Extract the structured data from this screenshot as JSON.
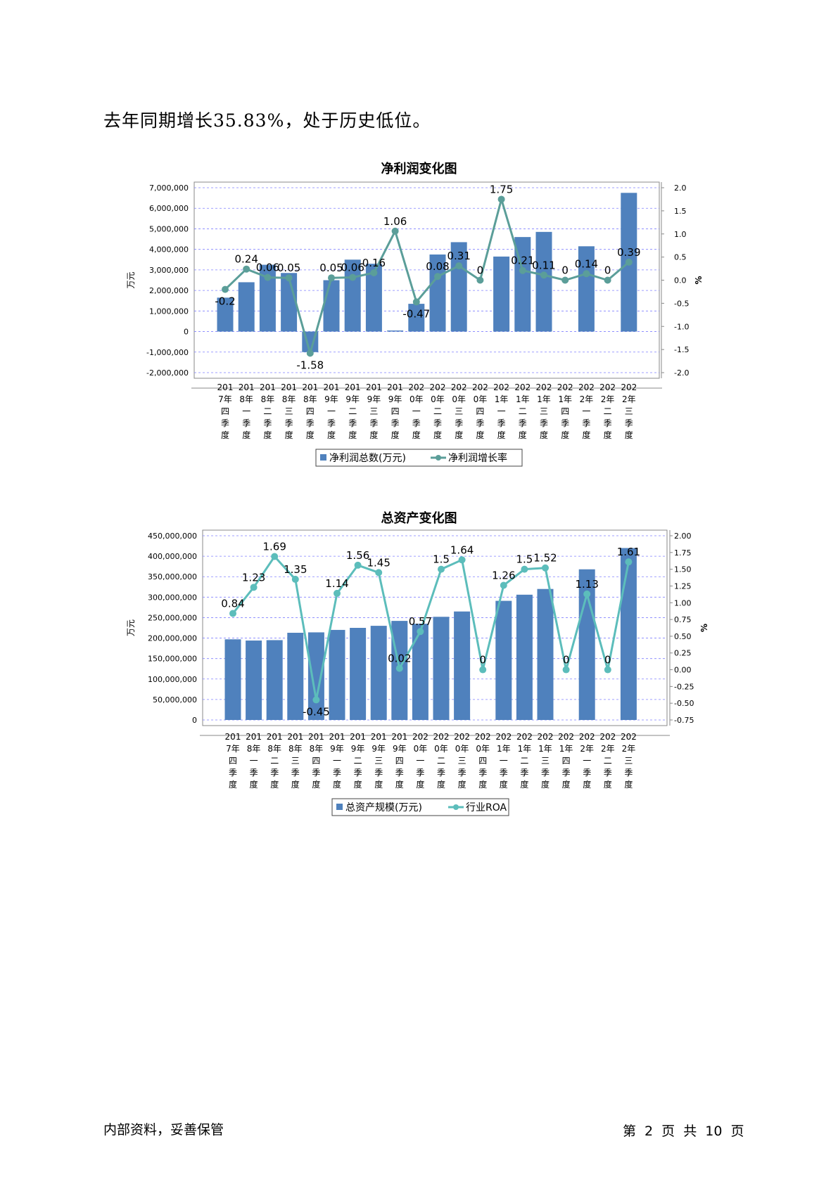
{
  "intro_text": "去年同期增长35.83%，处于历史低位。",
  "footer": {
    "left": "内部资料，妥善保管",
    "right": "第 2 页  共 10 页"
  },
  "categories": [
    [
      "201",
      "7年",
      "四",
      "季",
      "度"
    ],
    [
      "201",
      "8年",
      "一",
      "季",
      "度"
    ],
    [
      "201",
      "8年",
      "二",
      "季",
      "度"
    ],
    [
      "201",
      "8年",
      "三",
      "季",
      "度"
    ],
    [
      "201",
      "8年",
      "四",
      "季",
      "度"
    ],
    [
      "201",
      "9年",
      "一",
      "季",
      "度"
    ],
    [
      "201",
      "9年",
      "二",
      "季",
      "度"
    ],
    [
      "201",
      "9年",
      "三",
      "季",
      "度"
    ],
    [
      "201",
      "9年",
      "四",
      "季",
      "度"
    ],
    [
      "202",
      "0年",
      "一",
      "季",
      "度"
    ],
    [
      "202",
      "0年",
      "二",
      "季",
      "度"
    ],
    [
      "202",
      "0年",
      "三",
      "季",
      "度"
    ],
    [
      "202",
      "0年",
      "四",
      "季",
      "度"
    ],
    [
      "202",
      "1年",
      "一",
      "季",
      "度"
    ],
    [
      "202",
      "1年",
      "二",
      "季",
      "度"
    ],
    [
      "202",
      "1年",
      "三",
      "季",
      "度"
    ],
    [
      "202",
      "1年",
      "四",
      "季",
      "度"
    ],
    [
      "202",
      "2年",
      "一",
      "季",
      "度"
    ],
    [
      "202",
      "2年",
      "二",
      "季",
      "度"
    ],
    [
      "202",
      "2年",
      "三",
      "季",
      "度"
    ]
  ],
  "chart_data": [
    {
      "type": "bar+line",
      "title": "净利润变化图",
      "ylabel_left": "万元",
      "ylabel_right": "%",
      "ylim_left": [
        -2000000,
        7000000
      ],
      "ylim_right": [
        -2.0,
        2.0
      ],
      "left_ticks": [
        "-2,000,000",
        "-1,000,000",
        "0",
        "1,000,000",
        "2,000,000",
        "3,000,000",
        "4,000,000",
        "5,000,000",
        "6,000,000",
        "7,000,000"
      ],
      "right_ticks": [
        "-2.0",
        "-1.5",
        "-1.0",
        "-0.5",
        "0.0",
        "0.5",
        "1.0",
        "1.5",
        "2.0"
      ],
      "series": [
        {
          "name": "净利润总数(万元)",
          "kind": "bar",
          "color": "#4f81bd",
          "values": [
            1650000,
            2400000,
            3250000,
            2850000,
            -1000000,
            2500000,
            3500000,
            3300000,
            50000,
            1350000,
            3750000,
            4350000,
            null,
            3650000,
            4600000,
            4850000,
            null,
            4150000,
            null,
            6750000
          ]
        },
        {
          "name": "净利润增长率",
          "kind": "line",
          "color": "#5b9e99",
          "values": [
            -0.2,
            0.24,
            0.06,
            0.05,
            -1.58,
            0.05,
            0.06,
            0.16,
            1.06,
            -0.47,
            0.08,
            0.31,
            0,
            1.75,
            0.21,
            0.11,
            0,
            0.14,
            0,
            0.39
          ],
          "labels": [
            "-0.2",
            "0.24",
            "0.06",
            "0.05",
            "-1.58",
            "0.05",
            "0.06",
            "0.16",
            "1.06",
            "-0.47",
            "0.08",
            "0.31",
            "0",
            "1.75",
            "0.21",
            "0.11",
            "0",
            "0.14",
            "0",
            "0.39"
          ]
        }
      ],
      "legend": [
        "净利润总数(万元)",
        "净利润增长率"
      ],
      "grid": true
    },
    {
      "type": "bar+line",
      "title": "总资产变化图",
      "ylabel_left": "万元",
      "ylabel_right": "%",
      "ylim_left": [
        0,
        450000000
      ],
      "ylim_right": [
        -0.75,
        2.0
      ],
      "left_ticks": [
        "0",
        "50,000,000",
        "100,000,000",
        "150,000,000",
        "200,000,000",
        "250,000,000",
        "300,000,000",
        "350,000,000",
        "400,000,000",
        "450,000,000"
      ],
      "right_ticks": [
        "-0.75",
        "-0.50",
        "-0.25",
        "0.00",
        "0.25",
        "0.50",
        "0.75",
        "1.00",
        "1.25",
        "1.50",
        "1.75",
        "2.00"
      ],
      "series": [
        {
          "name": "总资产规模(万元)",
          "kind": "bar",
          "color": "#4f81bd",
          "values": [
            197000000,
            194000000,
            195000000,
            213000000,
            214000000,
            220000000,
            225000000,
            230000000,
            242000000,
            235000000,
            252000000,
            265000000,
            null,
            291000000,
            306000000,
            320000000,
            null,
            368000000,
            null,
            420000000
          ]
        },
        {
          "name": "行业ROA",
          "kind": "line",
          "color": "#5cbdbb",
          "values": [
            0.84,
            1.23,
            1.69,
            1.35,
            -0.45,
            1.14,
            1.56,
            1.45,
            0.02,
            0.57,
            1.5,
            1.64,
            0,
            1.26,
            1.5,
            1.52,
            0,
            1.13,
            0,
            1.61
          ],
          "labels": [
            "0.84",
            "1.23",
            "1.69",
            "1.35",
            "-0.45",
            "1.14",
            "1.56",
            "1.45",
            "0.02",
            "0.57",
            "1.5",
            "1.64",
            "0",
            "1.26",
            "1.5",
            "1.52",
            "0",
            "1.13",
            "0",
            "1.61"
          ]
        }
      ],
      "legend": [
        "总资产规模(万元)",
        "行业ROA"
      ],
      "grid": true
    }
  ]
}
